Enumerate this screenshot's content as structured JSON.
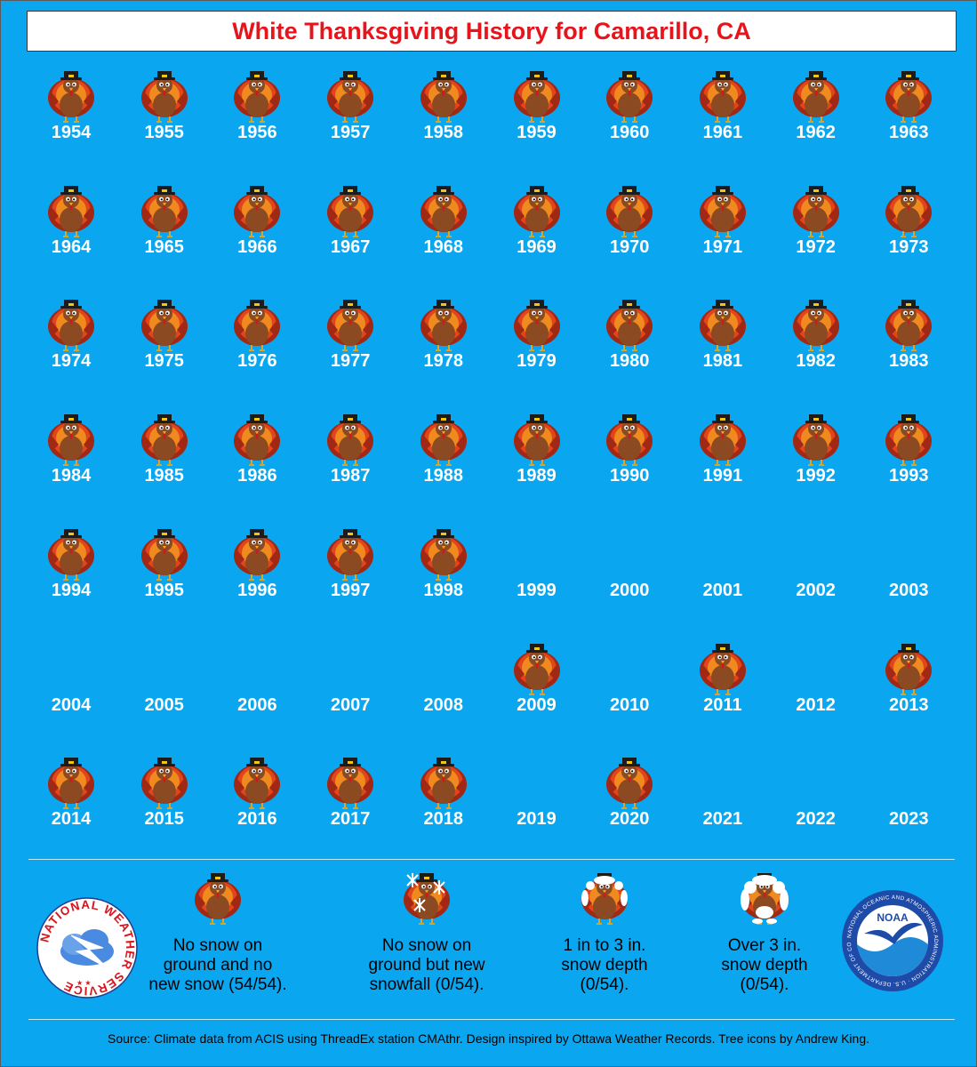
{
  "title": "White Thanksgiving History for Camarillo, CA",
  "chart_data": {
    "type": "table",
    "title": "White Thanksgiving History for Camarillo, CA",
    "categories": [
      "No snow on ground and no new snow",
      "No snow on ground but new snowfall",
      "1 in to 3 in. snow depth",
      "Over 3 in. snow depth"
    ],
    "years": [
      {
        "year": "1954",
        "status": "no-snow"
      },
      {
        "year": "1955",
        "status": "no-snow"
      },
      {
        "year": "1956",
        "status": "no-snow"
      },
      {
        "year": "1957",
        "status": "no-snow"
      },
      {
        "year": "1958",
        "status": "no-snow"
      },
      {
        "year": "1959",
        "status": "no-snow"
      },
      {
        "year": "1960",
        "status": "no-snow"
      },
      {
        "year": "1961",
        "status": "no-snow"
      },
      {
        "year": "1962",
        "status": "no-snow"
      },
      {
        "year": "1963",
        "status": "no-snow"
      },
      {
        "year": "1964",
        "status": "no-snow"
      },
      {
        "year": "1965",
        "status": "no-snow"
      },
      {
        "year": "1966",
        "status": "no-snow"
      },
      {
        "year": "1967",
        "status": "no-snow"
      },
      {
        "year": "1968",
        "status": "no-snow"
      },
      {
        "year": "1969",
        "status": "no-snow"
      },
      {
        "year": "1970",
        "status": "no-snow"
      },
      {
        "year": "1971",
        "status": "no-snow"
      },
      {
        "year": "1972",
        "status": "no-snow"
      },
      {
        "year": "1973",
        "status": "no-snow"
      },
      {
        "year": "1974",
        "status": "no-snow"
      },
      {
        "year": "1975",
        "status": "no-snow"
      },
      {
        "year": "1976",
        "status": "no-snow"
      },
      {
        "year": "1977",
        "status": "no-snow"
      },
      {
        "year": "1978",
        "status": "no-snow"
      },
      {
        "year": "1979",
        "status": "no-snow"
      },
      {
        "year": "1980",
        "status": "no-snow"
      },
      {
        "year": "1981",
        "status": "no-snow"
      },
      {
        "year": "1982",
        "status": "no-snow"
      },
      {
        "year": "1983",
        "status": "no-snow"
      },
      {
        "year": "1984",
        "status": "no-snow"
      },
      {
        "year": "1985",
        "status": "no-snow"
      },
      {
        "year": "1986",
        "status": "no-snow"
      },
      {
        "year": "1987",
        "status": "no-snow"
      },
      {
        "year": "1988",
        "status": "no-snow"
      },
      {
        "year": "1989",
        "status": "no-snow"
      },
      {
        "year": "1990",
        "status": "no-snow"
      },
      {
        "year": "1991",
        "status": "no-snow"
      },
      {
        "year": "1992",
        "status": "no-snow"
      },
      {
        "year": "1993",
        "status": "no-snow"
      },
      {
        "year": "1994",
        "status": "no-snow"
      },
      {
        "year": "1995",
        "status": "no-snow"
      },
      {
        "year": "1996",
        "status": "no-snow"
      },
      {
        "year": "1997",
        "status": "no-snow"
      },
      {
        "year": "1998",
        "status": "no-snow"
      },
      {
        "year": "1999",
        "status": "none"
      },
      {
        "year": "2000",
        "status": "none"
      },
      {
        "year": "2001",
        "status": "none"
      },
      {
        "year": "2002",
        "status": "none"
      },
      {
        "year": "2003",
        "status": "none"
      },
      {
        "year": "2004",
        "status": "none"
      },
      {
        "year": "2005",
        "status": "none"
      },
      {
        "year": "2006",
        "status": "none"
      },
      {
        "year": "2007",
        "status": "none"
      },
      {
        "year": "2008",
        "status": "none"
      },
      {
        "year": "2009",
        "status": "no-snow"
      },
      {
        "year": "2010",
        "status": "none"
      },
      {
        "year": "2011",
        "status": "no-snow"
      },
      {
        "year": "2012",
        "status": "none"
      },
      {
        "year": "2013",
        "status": "no-snow"
      },
      {
        "year": "2014",
        "status": "no-snow"
      },
      {
        "year": "2015",
        "status": "no-snow"
      },
      {
        "year": "2016",
        "status": "no-snow"
      },
      {
        "year": "2017",
        "status": "no-snow"
      },
      {
        "year": "2018",
        "status": "no-snow"
      },
      {
        "year": "2019",
        "status": "none"
      },
      {
        "year": "2020",
        "status": "no-snow"
      },
      {
        "year": "2021",
        "status": "none"
      },
      {
        "year": "2022",
        "status": "none"
      },
      {
        "year": "2023",
        "status": "none"
      }
    ]
  },
  "legend": [
    {
      "icon": "turkey-icon",
      "text": "No snow on\nground and no\nnew snow (54/54)."
    },
    {
      "icon": "turkey-snowflakes-icon",
      "text": "No snow on\nground but new\nsnowfall (0/54)."
    },
    {
      "icon": "turkey-light-snow-icon",
      "text": "1 in to 3 in.\nsnow depth\n(0/54)."
    },
    {
      "icon": "turkey-heavy-snow-icon",
      "text": "Over 3 in.\nsnow depth\n(0/54)."
    }
  ],
  "logos": {
    "nws_text": "NATIONAL WEATHER SERVICE",
    "noaa_label": "NOAA",
    "noaa_ring_text": "NATIONAL OCEANIC AND ATMOSPHERIC ADMINISTRATION · U.S. DEPARTMENT OF COMMERCE"
  },
  "source": "Source: Climate data from ACIS using ThreadEx station CMAthr. Design inspired by Ottawa Weather Records. Tree icons by Andrew King.",
  "colors": {
    "background": "#0aa6ef",
    "title": "#e8141c",
    "feather_dark": "#a02814",
    "feather_mid": "#e0451c",
    "feather_light": "#f08a1e",
    "body": "#8b4a22",
    "hat": "#1c1c1c"
  }
}
